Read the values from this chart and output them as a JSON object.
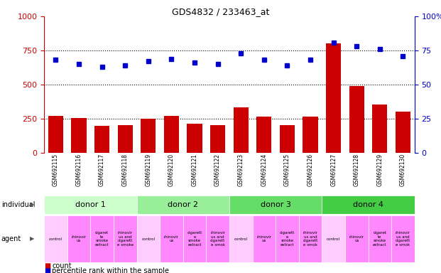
{
  "title": "GDS4832 / 233463_at",
  "samples": [
    "GSM692115",
    "GSM692116",
    "GSM692117",
    "GSM692118",
    "GSM692119",
    "GSM692120",
    "GSM692121",
    "GSM692122",
    "GSM692123",
    "GSM692124",
    "GSM692125",
    "GSM692126",
    "GSM692127",
    "GSM692128",
    "GSM692129",
    "GSM692130"
  ],
  "counts": [
    270,
    255,
    200,
    205,
    250,
    270,
    215,
    205,
    335,
    265,
    205,
    265,
    800,
    490,
    355,
    300
  ],
  "percentiles": [
    68,
    65,
    63,
    64,
    67,
    69,
    66,
    65,
    73,
    68,
    64,
    68,
    81,
    78,
    76,
    71
  ],
  "ylim_left": [
    0,
    1000
  ],
  "ylim_right": [
    0,
    100
  ],
  "yticks_left": [
    0,
    250,
    500,
    750,
    1000
  ],
  "yticks_right": [
    0,
    25,
    50,
    75,
    100
  ],
  "bar_color": "#cc0000",
  "dot_color": "#0000cc",
  "bg_color": "#ffffff",
  "donor_groups": [
    {
      "label": "donor 1",
      "start": 0,
      "end": 4,
      "color": "#ccffcc"
    },
    {
      "label": "donor 2",
      "start": 4,
      "end": 8,
      "color": "#99ee99"
    },
    {
      "label": "donor 3",
      "start": 8,
      "end": 12,
      "color": "#66dd66"
    },
    {
      "label": "donor 4",
      "start": 12,
      "end": 16,
      "color": "#44cc44"
    }
  ],
  "agent_labels": [
    "control",
    "rhinovir\nus",
    "cigaret\nte\nsmoke\nextract",
    "rhinovir\nus and\ncigarett\ne smoke",
    "control",
    "rhinovir\nus",
    "cigarett\ne\nsmoke\nextract",
    "rhinovir\nus and\ncigarett\ne smok",
    "control",
    "rhinovir\nus",
    "cigarett\ne\nsmoke\nextract",
    "rhinovir\nus and\ncigarett\ne smok",
    "control",
    "rhinovir\nus",
    "cigaret\nte\nsmoke\nextract",
    "rhinovir\nus and\ncigarett\ne smok"
  ],
  "agent_bg_light": "#ffccff",
  "agent_bg_dark": "#ff88ff",
  "dotted_lines": [
    250,
    500,
    750
  ],
  "xtick_bg": "#bbbbbb",
  "plot_bg": "#ffffff",
  "left_axis_color": "#cc0000",
  "right_axis_color": "#0000cc"
}
